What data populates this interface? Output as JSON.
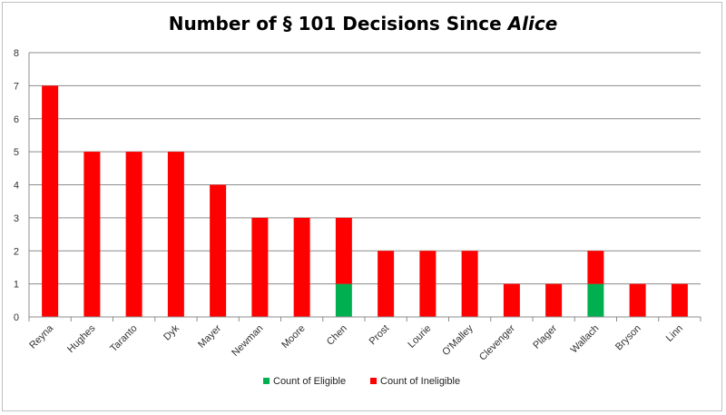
{
  "chart_data": {
    "type": "bar",
    "stacked": true,
    "title": "Number of § 101 Decisions Since",
    "title_italic": "Alice",
    "xlabel": "",
    "ylabel": "",
    "ylim": [
      0,
      8
    ],
    "y_ticks": [
      "0",
      "1",
      "2",
      "3",
      "4",
      "5",
      "6",
      "7",
      "8"
    ],
    "grid": true,
    "legend_position": "bottom",
    "categories": [
      "Reyna",
      "Hughes",
      "Taranto",
      "Dyk",
      "Mayer",
      "Newman",
      "Moore",
      "Chen",
      "Prost",
      "Lourie",
      "O'Malley",
      "Clevenger",
      "Plager",
      "Wallach",
      "Bryson",
      "Linn"
    ],
    "series": [
      {
        "name": "Count of Eligible",
        "color": "#00b050",
        "values": [
          0,
          0,
          0,
          0,
          0,
          0,
          0,
          1,
          0,
          0,
          0,
          0,
          0,
          1,
          0,
          0
        ]
      },
      {
        "name": "Count of Ineligible",
        "color": "#ff0000",
        "values": [
          7,
          5,
          5,
          5,
          4,
          3,
          3,
          2,
          2,
          2,
          2,
          1,
          1,
          1,
          1,
          1
        ]
      }
    ]
  }
}
